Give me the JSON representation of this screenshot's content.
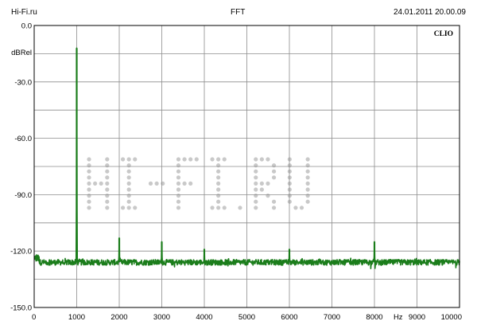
{
  "header": {
    "left": "Hi-Fi.ru",
    "center": "FFT",
    "right": "24.01.2011 20.00.09"
  },
  "colors": {
    "trace": "#1b7d1b",
    "grid": "#8c8c8c",
    "frame": "#000000"
  },
  "chart_data": {
    "type": "line",
    "title": "FFT",
    "brand_label": "CLIO",
    "watermark": "HI-FI.RU",
    "xlabel": "Hz",
    "ylabel": "dBRel",
    "xlim": [
      0,
      10000
    ],
    "ylim": [
      -150,
      0
    ],
    "x_ticks": [
      "0",
      "1000",
      "2000",
      "3000",
      "4000",
      "5000",
      "6000",
      "7000",
      "8000",
      "9000",
      "10000"
    ],
    "y_ticks": [
      "0.0",
      "-30.0",
      "-60.0",
      "-90.0",
      "-120.0",
      "-150.0"
    ],
    "grid": true,
    "noise_floor_db": -126,
    "series": [
      {
        "peaks": [
          {
            "x": 1000,
            "y": -12
          },
          {
            "x": 2000,
            "y": -113
          },
          {
            "x": 3000,
            "y": -115
          },
          {
            "x": 4000,
            "y": -119
          },
          {
            "x": 6000,
            "y": -119
          },
          {
            "x": 8000,
            "y": -115
          }
        ]
      }
    ]
  }
}
